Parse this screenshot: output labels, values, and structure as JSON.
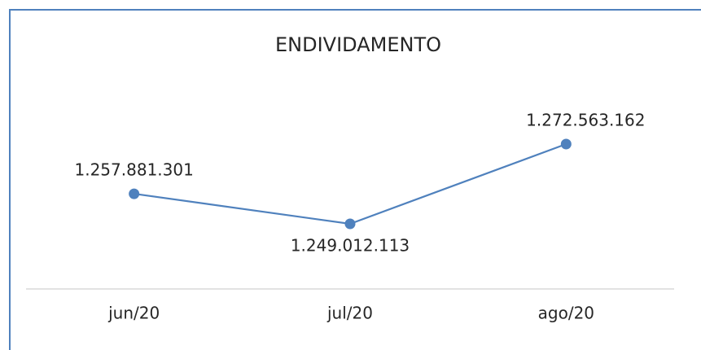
{
  "chart_data": {
    "type": "line",
    "title": "ENDIVIDAMENTO",
    "categories": [
      "jun/20",
      "jul/20",
      "ago/20"
    ],
    "series": [
      {
        "name": "ENDIVIDAMENTO",
        "color": "#4f81bd",
        "values": [
          1257881301,
          1249012113,
          1272563162
        ],
        "value_labels": [
          "1.257.881.301",
          "1.249.012.113",
          "1.272.563.162"
        ]
      }
    ]
  }
}
